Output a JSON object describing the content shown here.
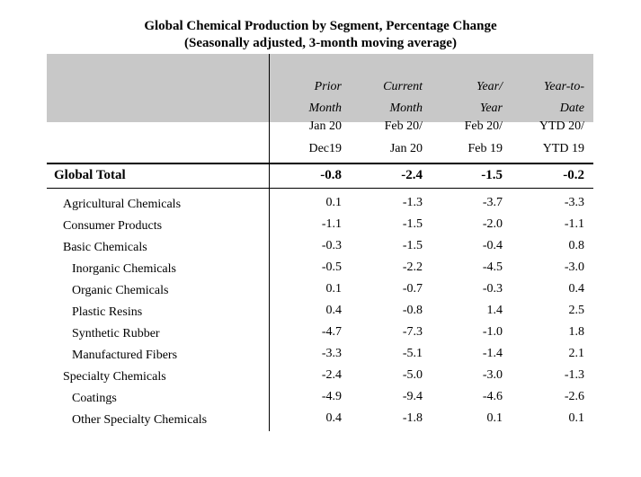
{
  "title": "Global Chemical Production by Segment, Percentage Change",
  "subtitle": "(Seasonally adjusted, 3-month moving average)",
  "columns": [
    {
      "line1": "Prior",
      "line2": "Month",
      "line3": "Jan 20",
      "line4": "Dec19"
    },
    {
      "line1": "Current",
      "line2": "Month",
      "line3": "Feb 20/",
      "line4": "Jan 20"
    },
    {
      "line1": "Year/",
      "line2": "Year",
      "line3": "Feb 20/",
      "line4": "Feb 19"
    },
    {
      "line1": "Year-to-",
      "line2": "Date",
      "line3": "YTD 20/",
      "line4": "YTD 19"
    }
  ],
  "total": {
    "label": "Global Total",
    "values": [
      "-0.8",
      "-2.4",
      "-1.5",
      "-0.2"
    ]
  },
  "rows": [
    {
      "label": "Agricultural Chemicals",
      "values": [
        "0.1",
        "-1.3",
        "-3.7",
        "-3.3"
      ]
    },
    {
      "label": "Consumer Products",
      "values": [
        "-1.1",
        "-1.5",
        "-2.0",
        "-1.1"
      ]
    },
    {
      "label": "Basic Chemicals",
      "values": [
        "-0.3",
        "-1.5",
        "-0.4",
        "0.8"
      ]
    },
    {
      "label": "Inorganic Chemicals",
      "values": [
        "-0.5",
        "-2.2",
        "-4.5",
        "-3.0"
      ]
    },
    {
      "label": "Organic Chemicals",
      "values": [
        "0.1",
        "-0.7",
        "-0.3",
        "0.4"
      ]
    },
    {
      "label": "Plastic Resins",
      "values": [
        "0.4",
        "-0.8",
        "1.4",
        "2.5"
      ]
    },
    {
      "label": "Synthetic Rubber",
      "values": [
        "-4.7",
        "-7.3",
        "-1.0",
        "1.8"
      ]
    },
    {
      "label": "Manufactured Fibers",
      "values": [
        "-3.3",
        "-5.1",
        "-1.4",
        "2.1"
      ]
    },
    {
      "label": "Specialty Chemicals",
      "values": [
        "-2.4",
        "-5.0",
        "-3.0",
        "-1.3"
      ]
    },
    {
      "label": "Coatings",
      "values": [
        "-4.9",
        "-9.4",
        "-4.6",
        "-2.6"
      ]
    },
    {
      "label": "Other Specialty Chemicals",
      "values": [
        "0.4",
        "-1.8",
        "0.1",
        "0.1"
      ]
    }
  ]
}
